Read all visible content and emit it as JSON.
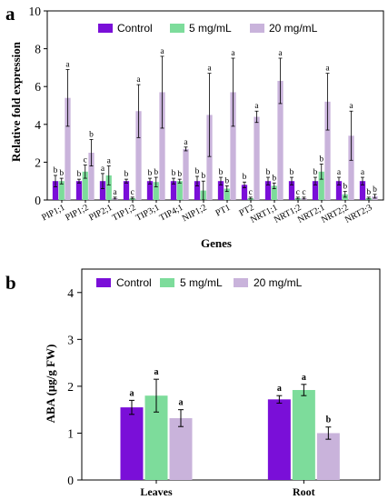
{
  "colors": {
    "control": "#7a0fd8",
    "mg5": "#7ddc9b",
    "mg20": "#c9b3db"
  },
  "chart_data": [
    {
      "panel": "a",
      "type": "bar",
      "xlabel": "Genes",
      "ylabel": "Relative fold expression",
      "ylim": [
        0,
        10
      ],
      "yticks": [
        "0",
        "2",
        "4",
        "6",
        "8",
        "10"
      ],
      "legend_position": "top",
      "categories": [
        "PIP1;1",
        "PIP1;2",
        "PIP2;1",
        "TIP1;2",
        "TIP3;1",
        "TIP4;1",
        "NIP1;2",
        "PT1",
        "PT2",
        "NRT1;1",
        "NRT1;2",
        "NRT2;1",
        "NRT2;2",
        "NRT2;3"
      ],
      "series": [
        {
          "name": "Control",
          "values": [
            1.0,
            1.0,
            1.0,
            1.0,
            1.0,
            1.0,
            1.0,
            1.0,
            0.8,
            1.0,
            1.0,
            1.0,
            1.0,
            1.0
          ],
          "errors": [
            0.3,
            0.1,
            0.4,
            0.1,
            0.15,
            0.15,
            0.25,
            0.2,
            0.15,
            0.2,
            0.2,
            0.2,
            0.2,
            0.2
          ],
          "letters": [
            "b",
            "b",
            "a",
            "b",
            "b",
            "b",
            "b",
            "b",
            "b",
            "b",
            "b",
            "b",
            "a",
            "a"
          ]
        },
        {
          "name": "5 mg/mL",
          "values": [
            1.0,
            1.5,
            1.3,
            0.1,
            0.95,
            1.0,
            0.5,
            0.6,
            0.1,
            0.75,
            0.1,
            1.5,
            0.3,
            0.1
          ],
          "errors": [
            0.15,
            0.35,
            0.5,
            0.05,
            0.25,
            0.1,
            0.5,
            0.15,
            0.05,
            0.15,
            0.05,
            0.4,
            0.15,
            0.05
          ],
          "letters": [
            "b",
            "c",
            "a",
            "c",
            "b",
            "b",
            "b",
            "b",
            "c",
            "b",
            "c",
            "b",
            "b",
            "b"
          ]
        },
        {
          "name": "20 mg/mL",
          "values": [
            5.4,
            2.5,
            0.1,
            4.7,
            5.7,
            2.7,
            4.5,
            5.7,
            4.4,
            6.3,
            0.1,
            5.2,
            3.4,
            0.2
          ],
          "errors": [
            1.5,
            0.7,
            0.05,
            1.4,
            1.9,
            0.1,
            2.2,
            1.8,
            0.3,
            1.2,
            0.05,
            1.5,
            1.3,
            0.1
          ],
          "letters": [
            "a",
            "b",
            "a",
            "a",
            "a",
            "a",
            "a",
            "a",
            "a",
            "a",
            "c",
            "a",
            "a",
            "b"
          ]
        }
      ]
    },
    {
      "panel": "b",
      "type": "bar",
      "xlabel": "",
      "ylabel": "ABA (μg/g FW)",
      "ylim": [
        0,
        4.5
      ],
      "yticks": [
        "0",
        "1",
        "2",
        "3",
        "4"
      ],
      "legend_position": "top",
      "categories": [
        "Leaves",
        "Root"
      ],
      "series": [
        {
          "name": "Control",
          "values": [
            1.55,
            1.72
          ],
          "errors": [
            0.15,
            0.08
          ],
          "letters": [
            "a",
            "a"
          ]
        },
        {
          "name": "5 mg/mL",
          "values": [
            1.8,
            1.92
          ],
          "errors": [
            0.35,
            0.12
          ],
          "letters": [
            "a",
            "a"
          ]
        },
        {
          "name": "20 mg/mL",
          "values": [
            1.32,
            1.0
          ],
          "errors": [
            0.18,
            0.13
          ],
          "letters": [
            "a",
            "b"
          ]
        }
      ]
    }
  ]
}
